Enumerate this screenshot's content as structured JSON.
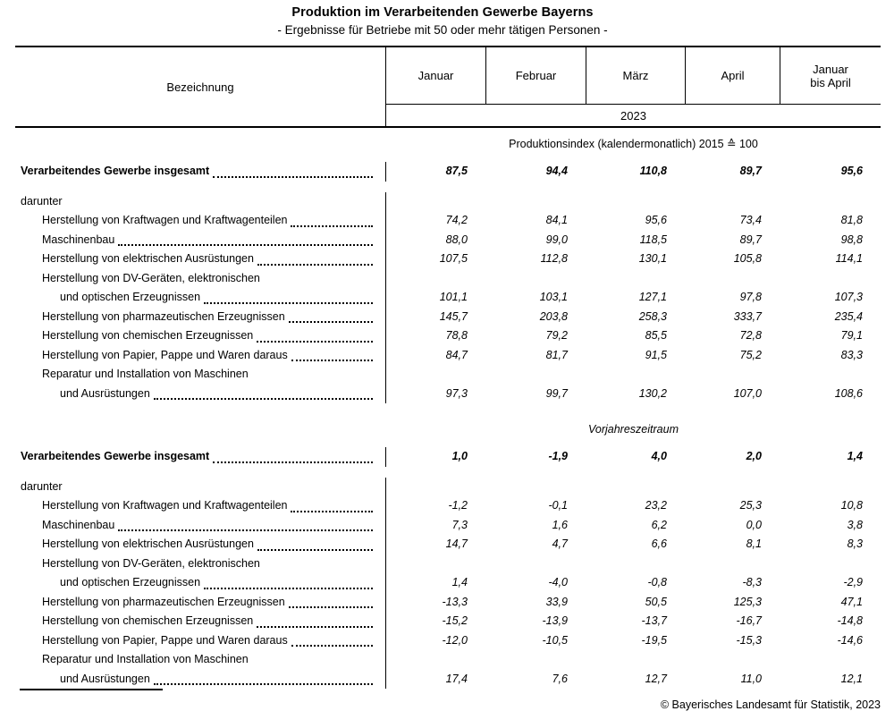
{
  "title": "Produktion im Verarbeitenden Gewerbe Bayerns",
  "subtitle": "- Ergebnisse für Betriebe mit 50 oder mehr tätigen Personen -",
  "header": {
    "label_col": "Bezeichnung",
    "month_cols": [
      "Januar",
      "Februar",
      "März",
      "April",
      "Januar bis April"
    ],
    "year": "2023"
  },
  "sections": [
    {
      "heading": "Produktionsindex (kalendermonatlich) 2015 ≙ 100",
      "heading_italic": false,
      "rows": [
        {
          "label": "Verarbeitendes Gewerbe insgesamt",
          "indent": 0,
          "bold": true,
          "leader": true,
          "gap": false,
          "values": [
            "87,5",
            "94,4",
            "110,8",
            "89,7",
            "95,6"
          ]
        },
        {
          "label": "darunter",
          "indent": 0,
          "bold": false,
          "leader": false,
          "gap": true,
          "values": null
        },
        {
          "label": "Herstellung von Kraftwagen und Kraftwagenteilen",
          "indent": 1,
          "bold": false,
          "leader": true,
          "gap": false,
          "values": [
            "74,2",
            "84,1",
            "95,6",
            "73,4",
            "81,8"
          ]
        },
        {
          "label": "Maschinenbau",
          "indent": 1,
          "bold": false,
          "leader": true,
          "gap": false,
          "values": [
            "88,0",
            "99,0",
            "118,5",
            "89,7",
            "98,8"
          ]
        },
        {
          "label": "Herstellung von elektrischen Ausrüstungen",
          "indent": 1,
          "bold": false,
          "leader": true,
          "gap": false,
          "values": [
            "107,5",
            "112,8",
            "130,1",
            "105,8",
            "114,1"
          ]
        },
        {
          "label": "Herstellung von DV-Geräten, elektronischen",
          "indent": 1,
          "bold": false,
          "leader": false,
          "gap": false,
          "values": null
        },
        {
          "label": "und optischen Erzeugnissen",
          "indent": 2,
          "bold": false,
          "leader": true,
          "gap": false,
          "values": [
            "101,1",
            "103,1",
            "127,1",
            "97,8",
            "107,3"
          ]
        },
        {
          "label": "Herstellung von pharmazeutischen Erzeugnissen",
          "indent": 1,
          "bold": false,
          "leader": true,
          "gap": false,
          "values": [
            "145,7",
            "203,8",
            "258,3",
            "333,7",
            "235,4"
          ]
        },
        {
          "label": "Herstellung von chemischen Erzeugnissen",
          "indent": 1,
          "bold": false,
          "leader": true,
          "gap": false,
          "values": [
            "78,8",
            "79,2",
            "85,5",
            "72,8",
            "79,1"
          ]
        },
        {
          "label": "Herstellung von Papier, Pappe und Waren daraus",
          "indent": 1,
          "bold": false,
          "leader": true,
          "gap": false,
          "values": [
            "84,7",
            "81,7",
            "91,5",
            "75,2",
            "83,3"
          ]
        },
        {
          "label": "Reparatur und Installation von Maschinen",
          "indent": 1,
          "bold": false,
          "leader": false,
          "gap": false,
          "values": null
        },
        {
          "label": "und Ausrüstungen",
          "indent": 2,
          "bold": false,
          "leader": true,
          "gap": false,
          "values": [
            "97,3",
            "99,7",
            "130,2",
            "107,0",
            "108,6"
          ]
        }
      ]
    },
    {
      "heading": "Vorjahreszeitraum",
      "heading_italic": true,
      "rows": [
        {
          "label": "Verarbeitendes Gewerbe insgesamt",
          "indent": 0,
          "bold": true,
          "leader": true,
          "gap": false,
          "values": [
            "1,0",
            "-1,9",
            "4,0",
            "2,0",
            "1,4"
          ]
        },
        {
          "label": "darunter",
          "indent": 0,
          "bold": false,
          "leader": false,
          "gap": true,
          "values": null
        },
        {
          "label": "Herstellung von Kraftwagen und Kraftwagenteilen",
          "indent": 1,
          "bold": false,
          "leader": true,
          "gap": false,
          "values": [
            "-1,2",
            "-0,1",
            "23,2",
            "25,3",
            "10,8"
          ]
        },
        {
          "label": "Maschinenbau",
          "indent": 1,
          "bold": false,
          "leader": true,
          "gap": false,
          "values": [
            "7,3",
            "1,6",
            "6,2",
            "0,0",
            "3,8"
          ]
        },
        {
          "label": "Herstellung von elektrischen Ausrüstungen",
          "indent": 1,
          "bold": false,
          "leader": true,
          "gap": false,
          "values": [
            "14,7",
            "4,7",
            "6,6",
            "8,1",
            "8,3"
          ]
        },
        {
          "label": "Herstellung von DV-Geräten, elektronischen",
          "indent": 1,
          "bold": false,
          "leader": false,
          "gap": false,
          "values": null
        },
        {
          "label": "und optischen Erzeugnissen",
          "indent": 2,
          "bold": false,
          "leader": true,
          "gap": false,
          "values": [
            "1,4",
            "-4,0",
            "-0,8",
            "-8,3",
            "-2,9"
          ]
        },
        {
          "label": "Herstellung von pharmazeutischen Erzeugnissen",
          "indent": 1,
          "bold": false,
          "leader": true,
          "gap": false,
          "values": [
            "-13,3",
            "33,9",
            "50,5",
            "125,3",
            "47,1"
          ]
        },
        {
          "label": "Herstellung von chemischen Erzeugnissen",
          "indent": 1,
          "bold": false,
          "leader": true,
          "gap": false,
          "values": [
            "-15,2",
            "-13,9",
            "-13,7",
            "-16,7",
            "-14,8"
          ]
        },
        {
          "label": "Herstellung von Papier, Pappe und Waren daraus",
          "indent": 1,
          "bold": false,
          "leader": true,
          "gap": false,
          "values": [
            "-12,0",
            "-10,5",
            "-19,5",
            "-15,3",
            "-14,6"
          ]
        },
        {
          "label": "Reparatur und Installation von Maschinen",
          "indent": 1,
          "bold": false,
          "leader": false,
          "gap": false,
          "values": null
        },
        {
          "label": "und Ausrüstungen",
          "indent": 2,
          "bold": false,
          "leader": true,
          "gap": false,
          "values": [
            "17,4",
            "7,6",
            "12,7",
            "11,0",
            "12,1"
          ]
        }
      ]
    }
  ],
  "footer": "© Bayerisches Landesamt für Statistik, 2023"
}
